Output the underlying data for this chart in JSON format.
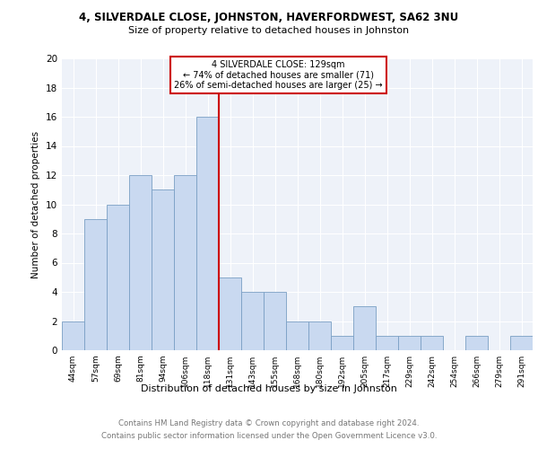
{
  "title1": "4, SILVERDALE CLOSE, JOHNSTON, HAVERFORDWEST, SA62 3NU",
  "title2": "Size of property relative to detached houses in Johnston",
  "xlabel": "Distribution of detached houses by size in Johnston",
  "ylabel": "Number of detached properties",
  "categories": [
    "44sqm",
    "57sqm",
    "69sqm",
    "81sqm",
    "94sqm",
    "106sqm",
    "118sqm",
    "131sqm",
    "143sqm",
    "155sqm",
    "168sqm",
    "180sqm",
    "192sqm",
    "205sqm",
    "217sqm",
    "229sqm",
    "242sqm",
    "254sqm",
    "266sqm",
    "279sqm",
    "291sqm"
  ],
  "values": [
    2,
    9,
    10,
    12,
    11,
    12,
    16,
    5,
    4,
    4,
    2,
    2,
    1,
    3,
    1,
    1,
    1,
    0,
    1,
    0,
    1
  ],
  "bar_color": "#c9d9f0",
  "bar_edge_color": "#7a9fc4",
  "vline_color": "#cc0000",
  "annotation_title": "4 SILVERDALE CLOSE: 129sqm",
  "annotation_line1": "← 74% of detached houses are smaller (71)",
  "annotation_line2": "26% of semi-detached houses are larger (25) →",
  "annotation_box_color": "#cc0000",
  "ylim": [
    0,
    20
  ],
  "yticks": [
    0,
    2,
    4,
    6,
    8,
    10,
    12,
    14,
    16,
    18,
    20
  ],
  "footer1": "Contains HM Land Registry data © Crown copyright and database right 2024.",
  "footer2": "Contains public sector information licensed under the Open Government Licence v3.0.",
  "bg_color": "#eef2f9"
}
